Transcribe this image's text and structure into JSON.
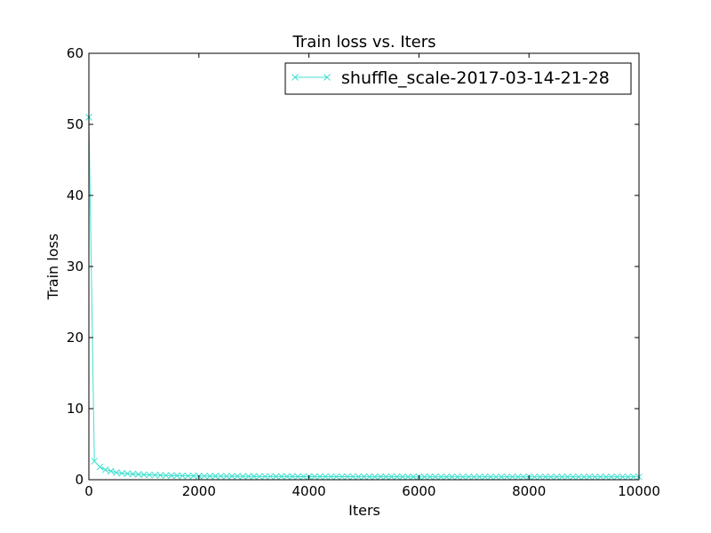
{
  "chart_data": {
    "type": "line",
    "title": "Train loss  vs. Iters",
    "xlabel": "Iters",
    "ylabel": "Train loss",
    "xlim": [
      0,
      10000
    ],
    "ylim": [
      0,
      60
    ],
    "xticks": [
      0,
      2000,
      4000,
      6000,
      8000,
      10000
    ],
    "yticks": [
      0,
      10,
      20,
      30,
      40,
      50,
      60
    ],
    "grid": false,
    "legend": "top-right",
    "series": [
      {
        "name": "shuffle_scale-2017-03-14-21-28",
        "color": "#40e0d0",
        "marker": "x",
        "x": [
          0,
          100,
          200,
          300,
          400,
          500,
          600,
          700,
          800,
          900,
          1000,
          1100,
          1200,
          1300,
          1400,
          1500,
          1600,
          1700,
          1800,
          1900,
          2000,
          2100,
          2200,
          2300,
          2400,
          2500,
          2600,
          2700,
          2800,
          2900,
          3000,
          3100,
          3200,
          3300,
          3400,
          3500,
          3600,
          3700,
          3800,
          3900,
          4000,
          4100,
          4200,
          4300,
          4400,
          4500,
          4600,
          4700,
          4800,
          4900,
          5000,
          5100,
          5200,
          5300,
          5400,
          5500,
          5600,
          5700,
          5800,
          5900,
          6000,
          6100,
          6200,
          6300,
          6400,
          6500,
          6600,
          6700,
          6800,
          6900,
          7000,
          7100,
          7200,
          7300,
          7400,
          7500,
          7600,
          7700,
          7800,
          7900,
          8000,
          8100,
          8200,
          8300,
          8400,
          8500,
          8600,
          8700,
          8800,
          8900,
          9000,
          9100,
          9200,
          9300,
          9400,
          9500,
          9600,
          9700,
          9800,
          9900,
          10000
        ],
        "y": [
          51.0,
          2.6,
          1.8,
          1.4,
          1.2,
          1.0,
          0.9,
          0.85,
          0.8,
          0.75,
          0.7,
          0.68,
          0.65,
          0.63,
          0.6,
          0.58,
          0.56,
          0.55,
          0.54,
          0.53,
          0.52,
          0.51,
          0.5,
          0.5,
          0.49,
          0.49,
          0.48,
          0.48,
          0.47,
          0.47,
          0.47,
          0.46,
          0.46,
          0.46,
          0.45,
          0.45,
          0.45,
          0.45,
          0.44,
          0.44,
          0.44,
          0.44,
          0.44,
          0.43,
          0.43,
          0.43,
          0.43,
          0.43,
          0.43,
          0.42,
          0.42,
          0.42,
          0.42,
          0.42,
          0.42,
          0.42,
          0.42,
          0.41,
          0.41,
          0.41,
          0.41,
          0.41,
          0.41,
          0.41,
          0.41,
          0.41,
          0.41,
          0.4,
          0.4,
          0.4,
          0.4,
          0.4,
          0.4,
          0.4,
          0.4,
          0.4,
          0.4,
          0.4,
          0.4,
          0.4,
          0.4,
          0.4,
          0.4,
          0.4,
          0.4,
          0.4,
          0.4,
          0.4,
          0.4,
          0.4,
          0.4,
          0.4,
          0.4,
          0.4,
          0.4,
          0.4,
          0.4,
          0.4,
          0.4,
          0.4,
          0.4
        ]
      }
    ]
  }
}
